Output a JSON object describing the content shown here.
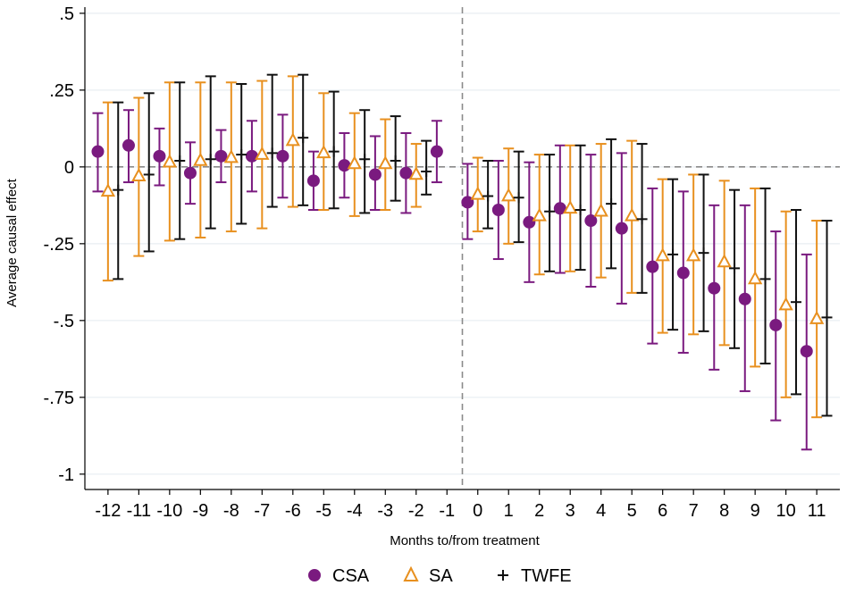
{
  "chart_data": {
    "type": "scatter",
    "xlabel": "Months to/from treatment",
    "ylabel": "Average causal effect",
    "ylim": [
      -1.05,
      0.52
    ],
    "xlim": [
      -12.75,
      11.75
    ],
    "yticks": [
      0.5,
      0.25,
      0,
      -0.25,
      -0.5,
      -0.75,
      -1
    ],
    "ytick_labels": [
      ".5",
      ".25",
      "0",
      "-.25",
      "-.5",
      "-.75",
      "-1"
    ],
    "x": [
      -12,
      -11,
      -10,
      -9,
      -8,
      -7,
      -6,
      -5,
      -4,
      -3,
      -2,
      -1,
      0,
      1,
      2,
      3,
      4,
      5,
      6,
      7,
      8,
      9,
      10,
      11
    ],
    "xtick_labels": [
      "-12",
      "-11",
      "-10",
      "-9",
      "-8",
      "-7",
      "-6",
      "-5",
      "-4",
      "-3",
      "-2",
      "-1",
      "0",
      "1",
      "2",
      "3",
      "4",
      "5",
      "6",
      "7",
      "8",
      "9",
      "10",
      "11"
    ],
    "reference_lines": {
      "y": 0,
      "x": -0.5,
      "style": "dashed"
    },
    "grid": "horizontal",
    "legend_position": "bottom",
    "series": [
      {
        "name": "CSA",
        "color": "#7a1a7f",
        "marker": "circle",
        "offset": -0.33,
        "values": [
          0.05,
          0.07,
          0.035,
          -0.02,
          0.035,
          0.035,
          0.035,
          -0.045,
          0.005,
          -0.025,
          -0.02,
          0.05,
          -0.115,
          -0.14,
          -0.18,
          -0.135,
          -0.175,
          -0.2,
          -0.325,
          -0.345,
          -0.395,
          -0.43,
          -0.515,
          -0.6
        ],
        "lower": [
          -0.08,
          -0.05,
          -0.06,
          -0.12,
          -0.05,
          -0.08,
          -0.1,
          -0.14,
          -0.1,
          -0.14,
          -0.15,
          -0.05,
          -0.235,
          -0.3,
          -0.375,
          -0.345,
          -0.39,
          -0.445,
          -0.575,
          -0.605,
          -0.66,
          -0.73,
          -0.825,
          -0.92
        ],
        "upper": [
          0.175,
          0.185,
          0.125,
          0.08,
          0.12,
          0.15,
          0.17,
          0.05,
          0.11,
          0.1,
          0.11,
          0.15,
          0.01,
          0.02,
          0.015,
          0.07,
          0.04,
          0.045,
          -0.07,
          -0.08,
          -0.125,
          -0.125,
          -0.21,
          -0.285
        ]
      },
      {
        "name": "SA",
        "color": "#e8901f",
        "marker": "triangle",
        "offset": 0,
        "values": [
          -0.08,
          -0.03,
          0.015,
          0.02,
          0.03,
          0.04,
          0.085,
          0.045,
          0.01,
          0.01,
          -0.025,
          null,
          -0.09,
          -0.095,
          -0.16,
          -0.135,
          -0.145,
          -0.16,
          -0.29,
          -0.29,
          -0.31,
          -0.365,
          -0.45,
          -0.495
        ],
        "lower": [
          -0.37,
          -0.29,
          -0.24,
          -0.23,
          -0.21,
          -0.2,
          -0.13,
          -0.14,
          -0.16,
          -0.14,
          -0.13,
          null,
          -0.21,
          -0.25,
          -0.35,
          -0.34,
          -0.36,
          -0.41,
          -0.54,
          -0.545,
          -0.58,
          -0.65,
          -0.75,
          -0.815
        ],
        "upper": [
          0.21,
          0.225,
          0.275,
          0.275,
          0.275,
          0.28,
          0.295,
          0.24,
          0.175,
          0.155,
          0.075,
          null,
          0.03,
          0.06,
          0.04,
          0.07,
          0.075,
          0.085,
          -0.04,
          -0.025,
          -0.045,
          -0.07,
          -0.145,
          -0.175
        ]
      },
      {
        "name": "TWFE",
        "color": "#111111",
        "marker": "plus",
        "offset": 0.33,
        "values": [
          -0.075,
          -0.025,
          0.02,
          0.025,
          0.04,
          0.045,
          0.095,
          0.05,
          0.025,
          0.02,
          -0.015,
          null,
          -0.095,
          -0.1,
          -0.145,
          -0.14,
          -0.12,
          -0.17,
          -0.285,
          -0.28,
          -0.33,
          -0.365,
          -0.44,
          -0.49
        ],
        "lower": [
          -0.365,
          -0.275,
          -0.235,
          -0.2,
          -0.185,
          -0.13,
          -0.125,
          -0.135,
          -0.15,
          -0.11,
          -0.09,
          null,
          -0.2,
          -0.245,
          -0.34,
          -0.335,
          -0.33,
          -0.41,
          -0.53,
          -0.535,
          -0.59,
          -0.64,
          -0.74,
          -0.81
        ],
        "upper": [
          0.21,
          0.24,
          0.275,
          0.295,
          0.27,
          0.3,
          0.3,
          0.245,
          0.185,
          0.165,
          0.085,
          null,
          0.02,
          0.05,
          0.04,
          0.07,
          0.09,
          0.075,
          -0.04,
          -0.025,
          -0.075,
          -0.07,
          -0.14,
          -0.175
        ]
      }
    ],
    "legend": [
      {
        "label": "CSA",
        "symbol": "●",
        "color": "#7a1a7f"
      },
      {
        "label": "SA",
        "symbol": "△",
        "color": "#e8901f"
      },
      {
        "label": "TWFE",
        "symbol": "+",
        "color": "#111111"
      }
    ]
  }
}
